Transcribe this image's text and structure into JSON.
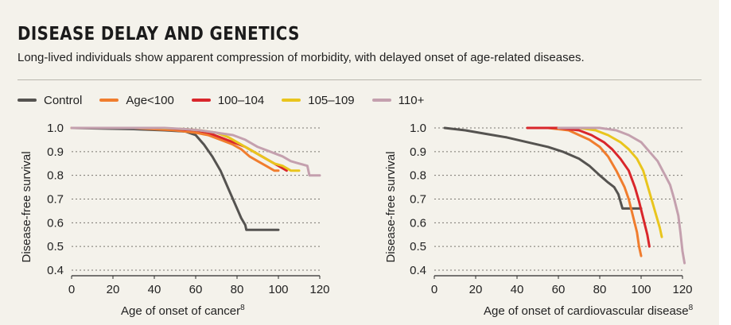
{
  "header": {
    "title": "DISEASE DELAY AND GENETICS",
    "subtitle": "Long-lived individuals show apparent compression of morbidity, with delayed onset of age-related diseases."
  },
  "legend": [
    {
      "key": "control",
      "label": "Control",
      "color": "#555350"
    },
    {
      "key": "age100",
      "label": "Age<100",
      "color": "#f07d2e"
    },
    {
      "key": "g100_104",
      "label": "100–104",
      "color": "#d9262b"
    },
    {
      "key": "g105_109",
      "label": "105–109",
      "color": "#e9c51d"
    },
    {
      "key": "g110",
      "label": "110+",
      "color": "#c4a0ae"
    }
  ],
  "chart_data": [
    {
      "type": "line",
      "xlabel": "Age of onset of cancer",
      "xlabel_superscript": "8",
      "ylabel": "Disease-free survival",
      "xlim": [
        0,
        120
      ],
      "ylim": [
        0.4,
        1.0
      ],
      "xticks": [
        "0",
        "20",
        "40",
        "60",
        "80",
        "100",
        "120"
      ],
      "yticks": [
        "1.0",
        "0.9",
        "0.8",
        "0.7",
        "0.6",
        "0.5",
        "0.4"
      ],
      "grid": "horizontal-dotted",
      "series": [
        {
          "name": "Control",
          "x": [
            0,
            30,
            45,
            55,
            60,
            64,
            68,
            72,
            74,
            76,
            78,
            80,
            82,
            84,
            84.5,
            88,
            92,
            96,
            100
          ],
          "y": [
            1,
            0.995,
            0.99,
            0.985,
            0.97,
            0.93,
            0.88,
            0.82,
            0.78,
            0.74,
            0.7,
            0.66,
            0.62,
            0.59,
            0.57,
            0.57,
            0.57,
            0.57,
            0.57
          ]
        },
        {
          "name": "Age<100",
          "x": [
            0,
            30,
            40,
            50,
            60,
            66,
            72,
            78,
            82,
            86,
            90,
            94,
            98,
            100
          ],
          "y": [
            1,
            1,
            0.995,
            0.99,
            0.98,
            0.97,
            0.95,
            0.93,
            0.91,
            0.88,
            0.86,
            0.84,
            0.82,
            0.82
          ]
        },
        {
          "name": "100–104",
          "x": [
            0,
            40,
            50,
            60,
            66,
            72,
            78,
            84,
            88,
            92,
            96,
            100,
            104
          ],
          "y": [
            1,
            1,
            0.995,
            0.99,
            0.98,
            0.96,
            0.94,
            0.92,
            0.9,
            0.88,
            0.86,
            0.84,
            0.82
          ]
        },
        {
          "name": "105–109",
          "x": [
            0,
            40,
            55,
            62,
            70,
            76,
            82,
            88,
            94,
            98,
            102,
            106,
            110
          ],
          "y": [
            1,
            1,
            0.995,
            0.99,
            0.98,
            0.96,
            0.93,
            0.9,
            0.87,
            0.85,
            0.84,
            0.82,
            0.82
          ]
        },
        {
          "name": "110+",
          "x": [
            0,
            45,
            55,
            62,
            70,
            78,
            84,
            90,
            96,
            102,
            106,
            110,
            114,
            115,
            120
          ],
          "y": [
            1,
            1,
            0.995,
            0.99,
            0.98,
            0.97,
            0.95,
            0.92,
            0.9,
            0.88,
            0.86,
            0.85,
            0.84,
            0.8,
            0.8
          ]
        }
      ]
    },
    {
      "type": "line",
      "xlabel": "Age of onset of cardiovascular disease",
      "xlabel_superscript": "8",
      "ylabel": "Disease-free survival",
      "xlim": [
        0,
        120
      ],
      "ylim": [
        0.4,
        1.0
      ],
      "xticks": [
        "0",
        "20",
        "40",
        "60",
        "80",
        "100",
        "120"
      ],
      "yticks": [
        "1.0",
        "0.9",
        "0.8",
        "0.7",
        "0.6",
        "0.5",
        "0.4"
      ],
      "grid": "horizontal-dotted",
      "series": [
        {
          "name": "Control",
          "x": [
            5,
            15,
            25,
            35,
            45,
            55,
            62,
            70,
            75,
            80,
            84,
            87,
            89,
            90,
            91,
            100
          ],
          "y": [
            1,
            0.99,
            0.975,
            0.96,
            0.94,
            0.92,
            0.9,
            0.87,
            0.84,
            0.8,
            0.77,
            0.75,
            0.72,
            0.69,
            0.66,
            0.66
          ]
        },
        {
          "name": "Age<100",
          "x": [
            45,
            55,
            65,
            70,
            75,
            80,
            84,
            88,
            92,
            94,
            96,
            98,
            99,
            100
          ],
          "y": [
            1,
            1,
            0.99,
            0.97,
            0.95,
            0.92,
            0.88,
            0.82,
            0.75,
            0.7,
            0.63,
            0.56,
            0.5,
            0.46
          ]
        },
        {
          "name": "100–104",
          "x": [
            45,
            60,
            70,
            76,
            82,
            86,
            90,
            94,
            97,
            99,
            101,
            103,
            104
          ],
          "y": [
            1,
            1,
            0.99,
            0.97,
            0.94,
            0.91,
            0.87,
            0.82,
            0.75,
            0.69,
            0.62,
            0.55,
            0.5
          ]
        },
        {
          "name": "105–109",
          "x": [
            60,
            70,
            78,
            84,
            90,
            94,
            98,
            101,
            103,
            105,
            107,
            109,
            110
          ],
          "y": [
            1,
            1,
            0.99,
            0.97,
            0.94,
            0.91,
            0.87,
            0.82,
            0.76,
            0.7,
            0.64,
            0.58,
            0.54
          ]
        },
        {
          "name": "110+",
          "x": [
            60,
            80,
            88,
            94,
            100,
            104,
            108,
            111,
            114,
            116,
            118,
            119,
            120,
            121
          ],
          "y": [
            1,
            1,
            0.99,
            0.97,
            0.94,
            0.9,
            0.86,
            0.81,
            0.76,
            0.7,
            0.63,
            0.56,
            0.48,
            0.43
          ]
        }
      ]
    }
  ]
}
